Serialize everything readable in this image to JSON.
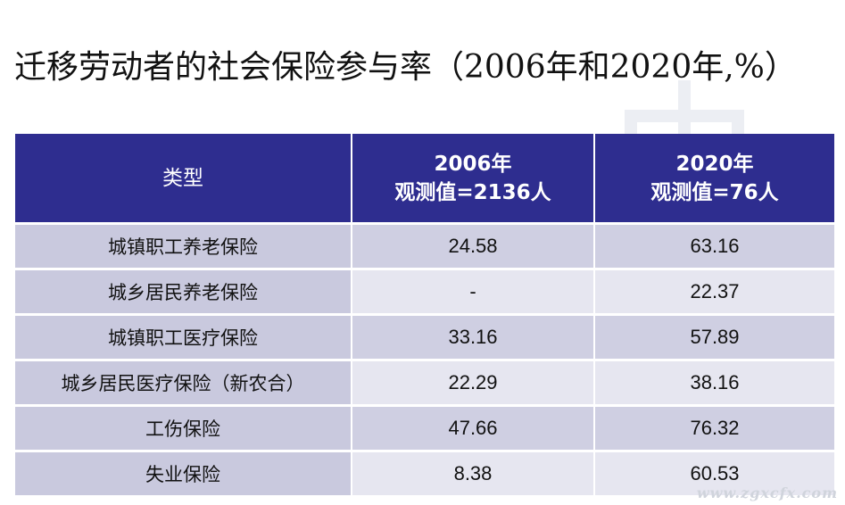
{
  "title": "迁移劳动者的社会保险参与率（2006年和2020年,%）",
  "table": {
    "headers": [
      {
        "line1": "类型",
        "line2": ""
      },
      {
        "line1": "2006年",
        "line2": "观测值=2136人"
      },
      {
        "line1": "2020年",
        "line2": "观测值=76人"
      }
    ],
    "rows": [
      {
        "type": "城镇职工养老保险",
        "y2006": "24.58",
        "y2020": "63.16"
      },
      {
        "type": "城乡居民养老保险",
        "y2006": "-",
        "y2020": "22.37"
      },
      {
        "type": "城镇职工医疗保险",
        "y2006": "33.16",
        "y2020": "57.89"
      },
      {
        "type": "城乡居民医疗保险（新农合）",
        "y2006": "22.29",
        "y2020": "38.16"
      },
      {
        "type": "工伤保险",
        "y2006": "47.66",
        "y2020": "76.32"
      },
      {
        "type": "失业保险",
        "y2006": "8.38",
        "y2020": "60.53"
      }
    ]
  },
  "watermark": "www.zgxcfx.com",
  "colors": {
    "header_bg": "#2e2d8f",
    "label_bg": "#c9c9de",
    "row_odd": "#cfcfe2",
    "row_even": "#e6e6f0"
  }
}
